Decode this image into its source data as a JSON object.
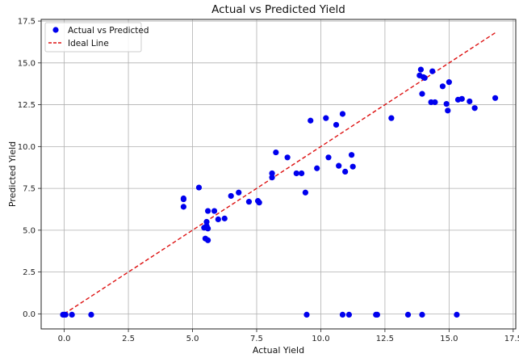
{
  "chart_data": {
    "type": "scatter",
    "title": "Actual vs Predicted Yield",
    "xlabel": "Actual Yield",
    "ylabel": "Predicted Yield",
    "xlim": [
      -0.9,
      17.6
    ],
    "ylim": [
      -0.9,
      17.6
    ],
    "xticks": [
      0.0,
      2.5,
      5.0,
      7.5,
      10.0,
      12.5,
      15.0,
      17.5
    ],
    "yticks": [
      0.0,
      2.5,
      5.0,
      7.5,
      10.0,
      12.5,
      15.0,
      17.5
    ],
    "tick_format": 1,
    "grid": true,
    "legend_position": "top-left",
    "colors": {
      "points": "#0000ee",
      "ideal_line": "#dd1111",
      "grid": "#b0b0b0"
    },
    "series": [
      {
        "name": "Actual vs Predicted",
        "kind": "scatter",
        "points": [
          [
            -0.05,
            -0.05
          ],
          [
            0.0,
            -0.05
          ],
          [
            0.05,
            -0.05
          ],
          [
            0.3,
            -0.05
          ],
          [
            1.05,
            -0.05
          ],
          [
            9.45,
            -0.05
          ],
          [
            10.85,
            -0.05
          ],
          [
            11.1,
            -0.05
          ],
          [
            12.15,
            -0.05
          ],
          [
            12.2,
            -0.05
          ],
          [
            13.4,
            -0.05
          ],
          [
            13.95,
            -0.05
          ],
          [
            15.3,
            -0.05
          ],
          [
            4.65,
            6.4
          ],
          [
            4.65,
            6.85
          ],
          [
            4.65,
            6.9
          ],
          [
            5.25,
            7.55
          ],
          [
            5.45,
            5.15
          ],
          [
            5.5,
            4.5
          ],
          [
            5.55,
            5.25
          ],
          [
            5.55,
            5.5
          ],
          [
            5.6,
            4.4
          ],
          [
            5.6,
            6.15
          ],
          [
            5.6,
            5.1
          ],
          [
            5.85,
            6.15
          ],
          [
            6.0,
            5.65
          ],
          [
            6.25,
            5.7
          ],
          [
            6.5,
            7.05
          ],
          [
            6.8,
            7.25
          ],
          [
            7.2,
            6.7
          ],
          [
            7.55,
            6.75
          ],
          [
            7.6,
            6.65
          ],
          [
            8.1,
            8.15
          ],
          [
            8.1,
            8.4
          ],
          [
            8.25,
            9.65
          ],
          [
            8.7,
            9.35
          ],
          [
            9.05,
            8.4
          ],
          [
            9.25,
            8.4
          ],
          [
            9.4,
            7.25
          ],
          [
            9.6,
            11.55
          ],
          [
            9.85,
            8.7
          ],
          [
            10.2,
            11.7
          ],
          [
            10.3,
            9.35
          ],
          [
            10.6,
            11.3
          ],
          [
            10.7,
            8.85
          ],
          [
            10.85,
            11.95
          ],
          [
            10.95,
            8.5
          ],
          [
            11.2,
            9.5
          ],
          [
            11.25,
            8.8
          ],
          [
            12.75,
            11.7
          ],
          [
            13.85,
            14.25
          ],
          [
            13.9,
            14.6
          ],
          [
            13.95,
            13.15
          ],
          [
            14.0,
            14.15
          ],
          [
            14.05,
            14.1
          ],
          [
            14.3,
            12.65
          ],
          [
            14.35,
            14.5
          ],
          [
            14.45,
            12.65
          ],
          [
            14.75,
            13.6
          ],
          [
            14.9,
            12.55
          ],
          [
            14.95,
            12.15
          ],
          [
            15.0,
            13.85
          ],
          [
            15.35,
            12.8
          ],
          [
            15.5,
            12.85
          ],
          [
            15.8,
            12.7
          ],
          [
            16.0,
            12.3
          ],
          [
            16.8,
            12.9
          ]
        ]
      },
      {
        "name": "Ideal Line",
        "kind": "line",
        "style": "dashed",
        "points": [
          [
            0.0,
            0.0
          ],
          [
            16.8,
            16.8
          ]
        ]
      }
    ]
  }
}
